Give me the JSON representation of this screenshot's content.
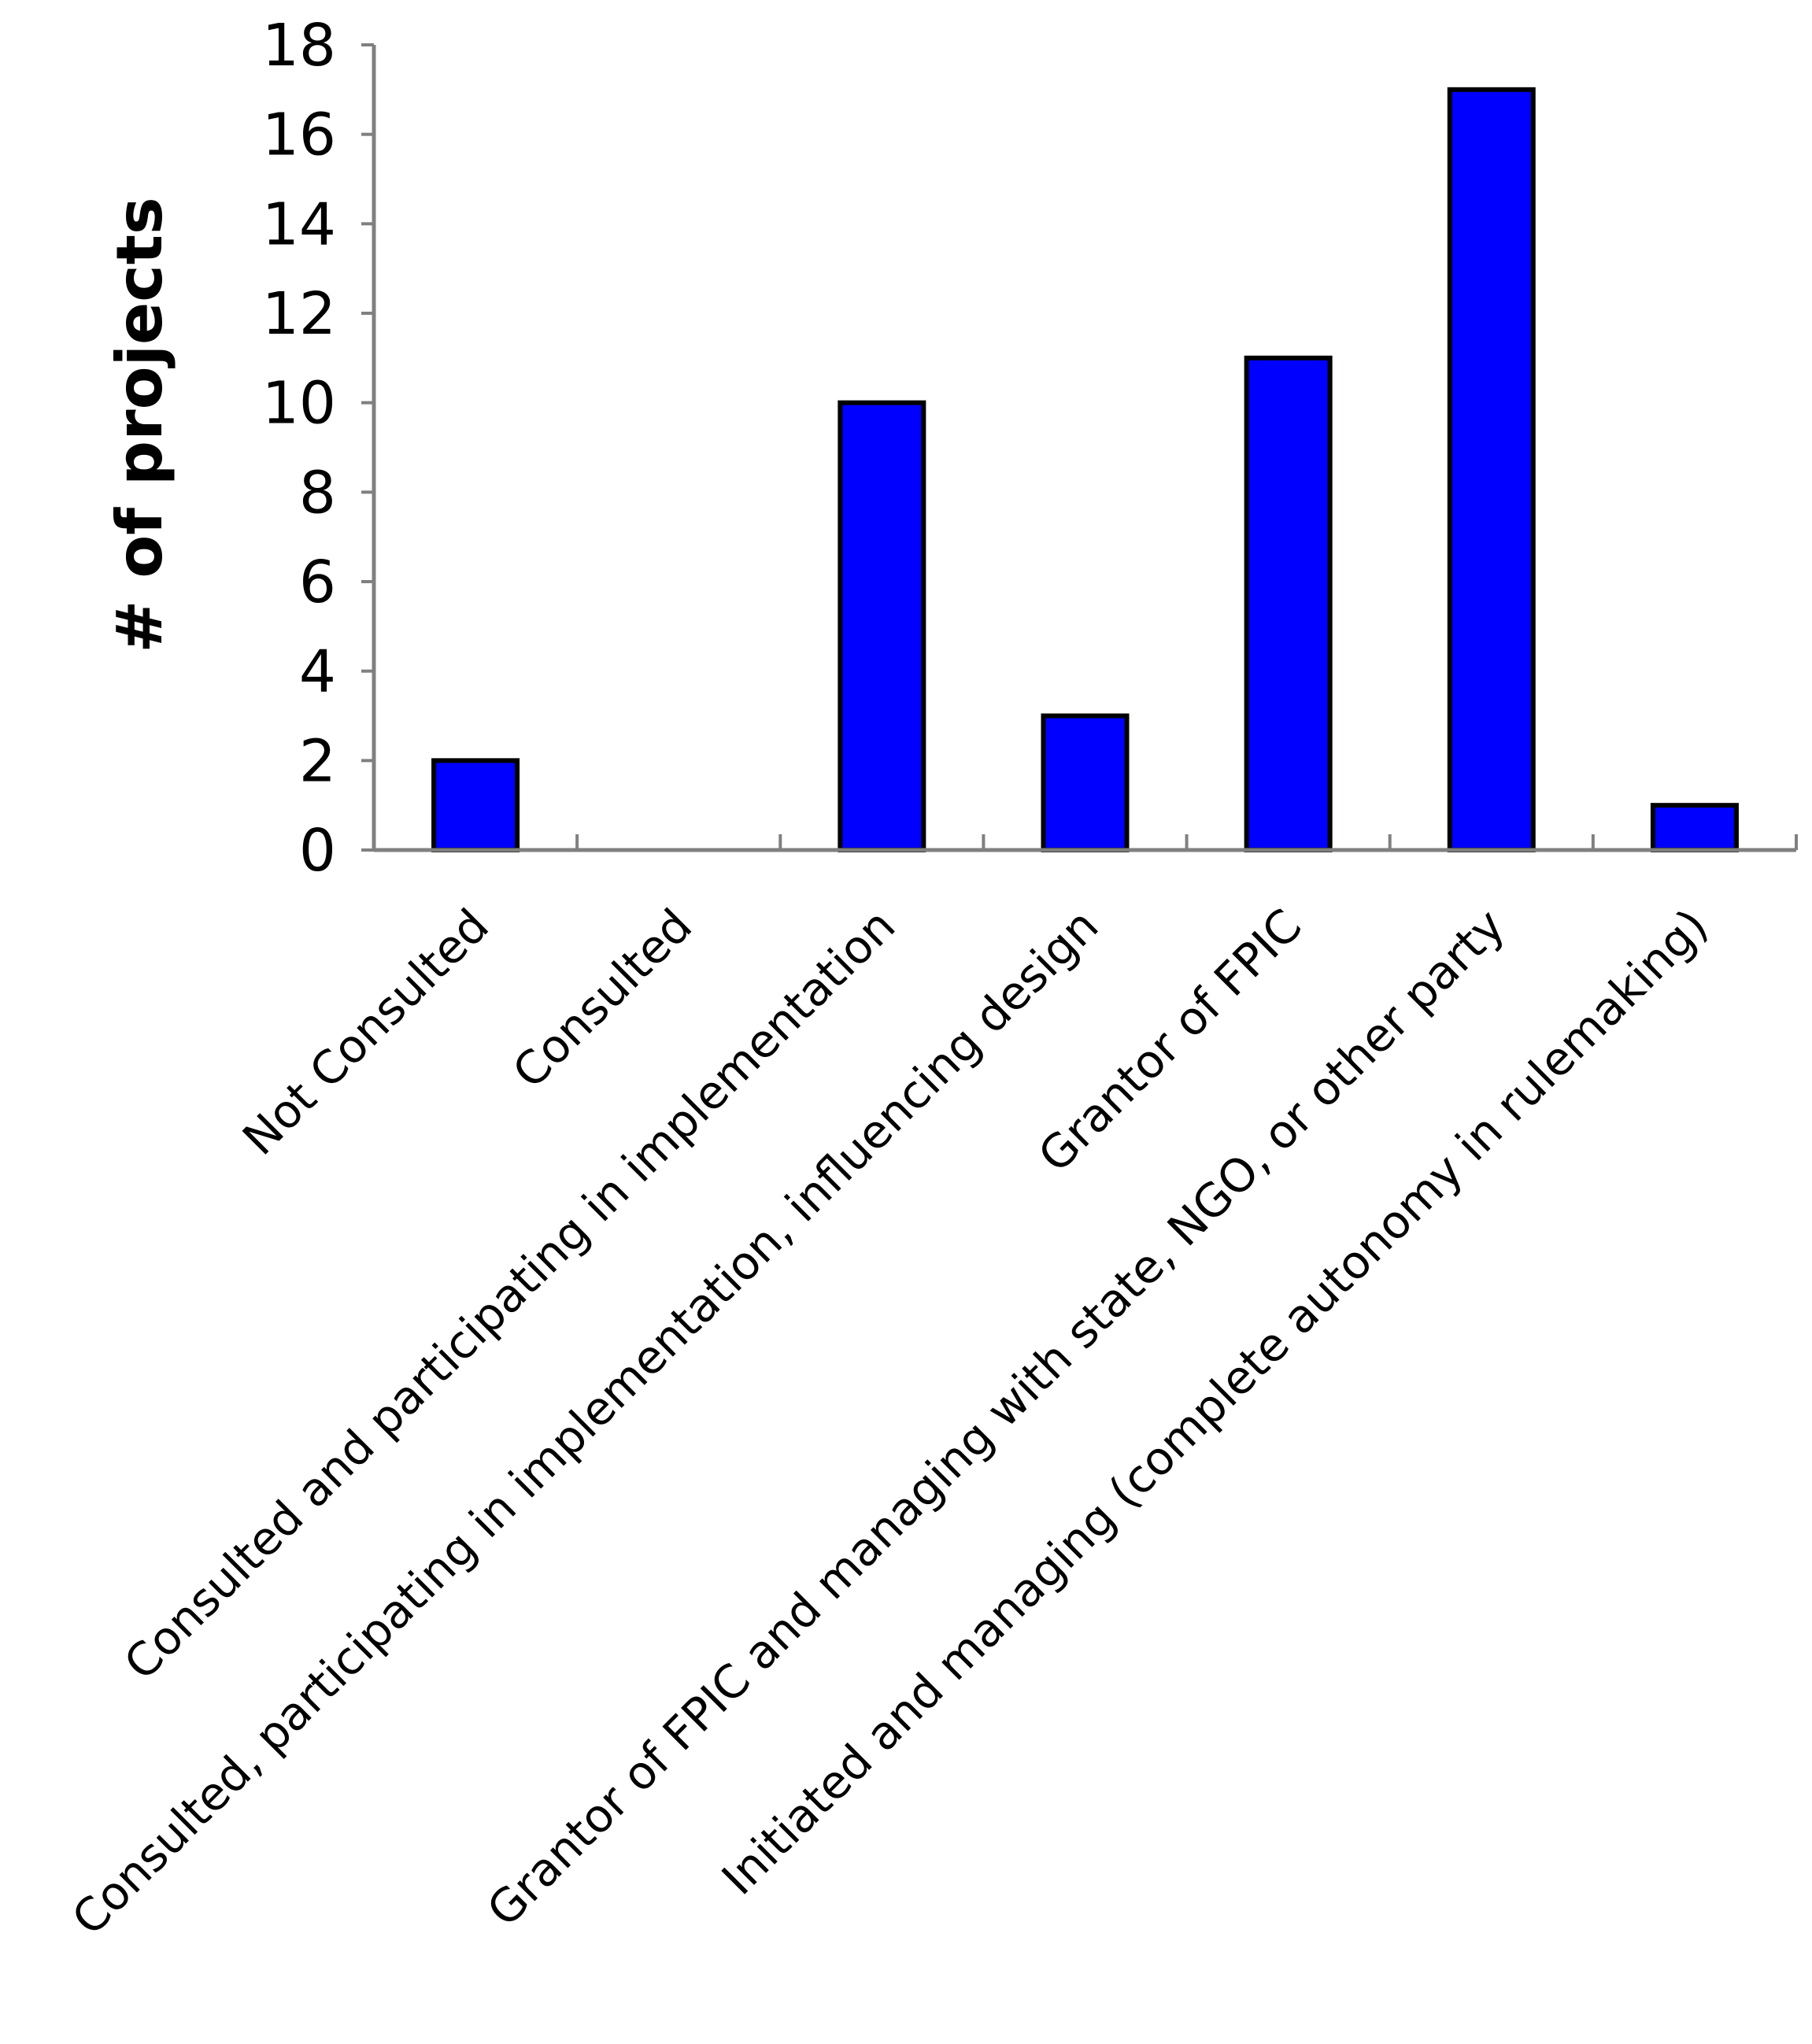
{
  "chart_data": {
    "type": "bar",
    "title": "",
    "xlabel": "",
    "ylabel": "# of projects",
    "ylim": [
      0,
      18
    ],
    "yticks": [
      0,
      2,
      4,
      6,
      8,
      10,
      12,
      14,
      16,
      18
    ],
    "grid": false,
    "categories": [
      "Not Consulted",
      "Consulted",
      "Consulted and participating in implementation",
      "Consulted, participating in implementation, influencing design",
      "Grantor of FPIC",
      "Grantor of FPIC and managing with state, NGO, or other party",
      "Initiated and managing (complete autonomy in rulemaking)"
    ],
    "values": [
      2,
      0,
      10,
      3,
      11,
      17,
      1
    ],
    "colors": {
      "bar_fill": "#0000FF",
      "bar_stroke": "#000000",
      "axis": "#808080"
    }
  }
}
